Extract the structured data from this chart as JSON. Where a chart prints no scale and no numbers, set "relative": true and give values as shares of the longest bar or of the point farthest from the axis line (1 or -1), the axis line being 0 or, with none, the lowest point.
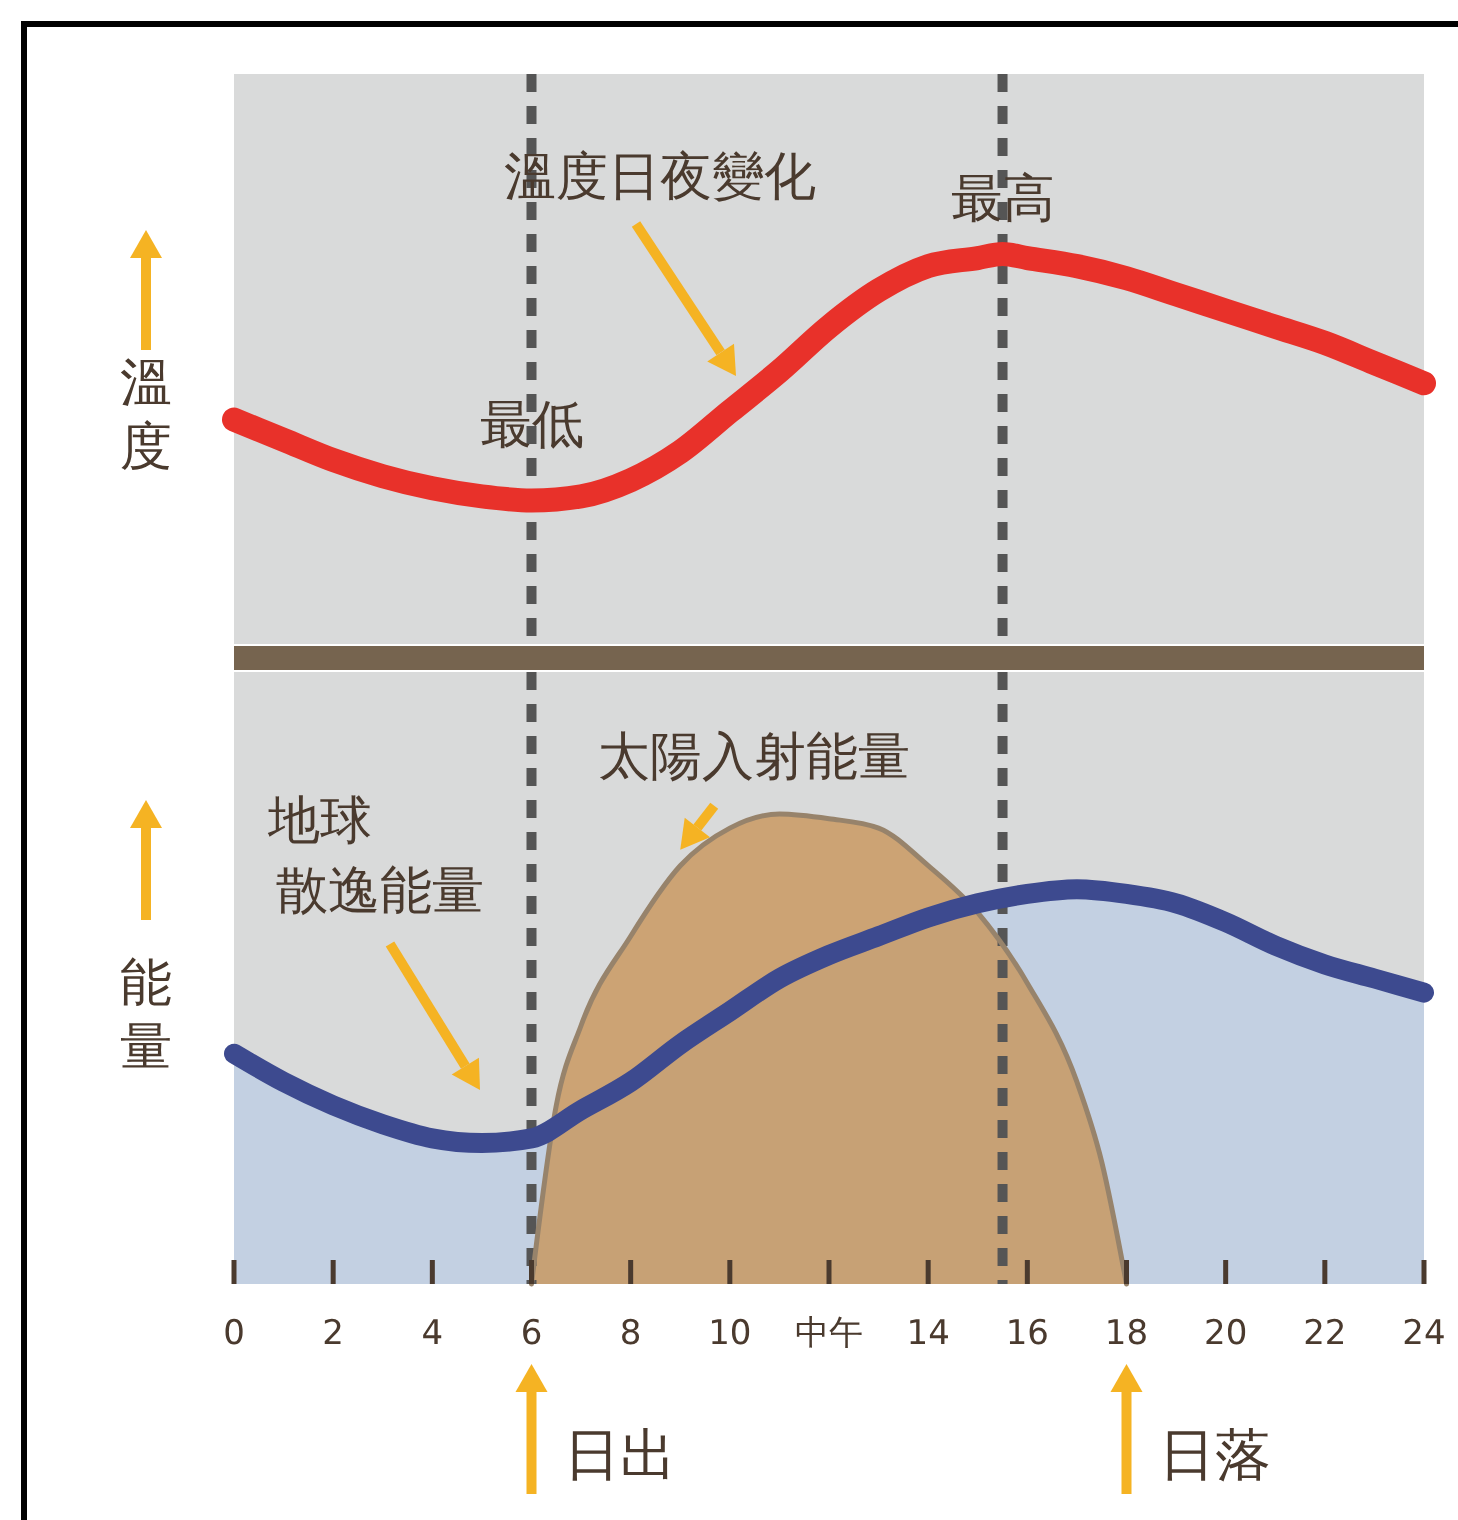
{
  "chart_data": [
    {
      "type": "line",
      "relative": true,
      "ylabel": "溫度",
      "xlim": [
        0,
        24
      ],
      "tick_labels": false,
      "x": [
        0,
        1,
        2,
        3,
        4,
        5,
        6,
        7,
        8,
        9,
        10,
        11,
        12,
        13,
        14,
        15,
        15.5,
        16,
        17,
        18,
        19,
        20,
        21,
        22,
        23,
        24
      ],
      "series": [
        {
          "color": "#e8312a",
          "values": [
            0.59,
            0.54,
            0.49,
            0.45,
            0.42,
            0.4,
            0.39,
            0.4,
            0.44,
            0.51,
            0.61,
            0.71,
            0.82,
            0.91,
            0.97,
            0.99,
            1,
            0.99,
            0.97,
            0.94,
            0.9,
            0.86,
            0.82,
            0.78,
            0.73,
            0.68
          ]
        }
      ],
      "ref_lines": [
        {
          "axis": "x",
          "value": 6,
          "color": "#555555",
          "line_style": "dashed"
        },
        {
          "axis": "x",
          "value": 15.5,
          "color": "#555555",
          "line_style": "dashed"
        }
      ],
      "annotations": [
        "溫度日夜變化",
        {
          "text": "最低",
          "x": 6,
          "y": 0.39
        },
        {
          "text": "最高",
          "x": 15.5,
          "y": 1
        }
      ]
    },
    {
      "type": "area",
      "relative": true,
      "ylabel": "能量",
      "xlim": [
        0,
        24
      ],
      "tick_labels": "x",
      "xticks": [
        0,
        2,
        4,
        6,
        8,
        10,
        {
          "value": 12,
          "label": "中午"
        },
        14,
        16,
        18,
        20,
        22,
        24
      ],
      "series": [
        {
          "color": "#3d4a8f",
          "x": [
            0,
            1,
            2,
            3,
            4,
            5,
            6,
            7,
            8,
            9,
            10,
            11,
            12,
            13,
            14,
            15,
            16,
            17,
            18,
            19,
            20,
            21,
            22,
            23,
            24
          ],
          "values": [
            0.49,
            0.43,
            0.38,
            0.34,
            0.31,
            0.3,
            0.31,
            0.37,
            0.43,
            0.51,
            0.58,
            0.65,
            0.7,
            0.74,
            0.78,
            0.81,
            0.83,
            0.84,
            0.83,
            0.81,
            0.77,
            0.72,
            0.68,
            0.65,
            0.62
          ]
        },
        {
          "color": "#c8955a",
          "x": [
            6,
            6.5,
            7,
            8,
            9,
            10,
            11,
            12,
            13,
            14,
            15,
            16,
            17,
            17.5,
            18
          ],
          "values": [
            0,
            0.38,
            0.55,
            0.74,
            0.89,
            0.97,
            1,
            0.99,
            0.97,
            0.89,
            0.79,
            0.64,
            0.43,
            0.26,
            0
          ]
        }
      ],
      "ref_lines": [
        {
          "axis": "x",
          "value": 6,
          "color": "#555555",
          "line_style": "dashed"
        },
        {
          "axis": "x",
          "value": 15.5,
          "color": "#555555",
          "line_style": "dashed"
        }
      ],
      "annotations": [
        {
          "text": "太陽入射能量",
          "x": 9,
          "y": 0.89
        },
        "地球",
        "散逸能量",
        {
          "text": "日出",
          "x": 6,
          "y": 0
        },
        {
          "text": "日落",
          "x": 18,
          "y": 0
        }
      ]
    }
  ]
}
